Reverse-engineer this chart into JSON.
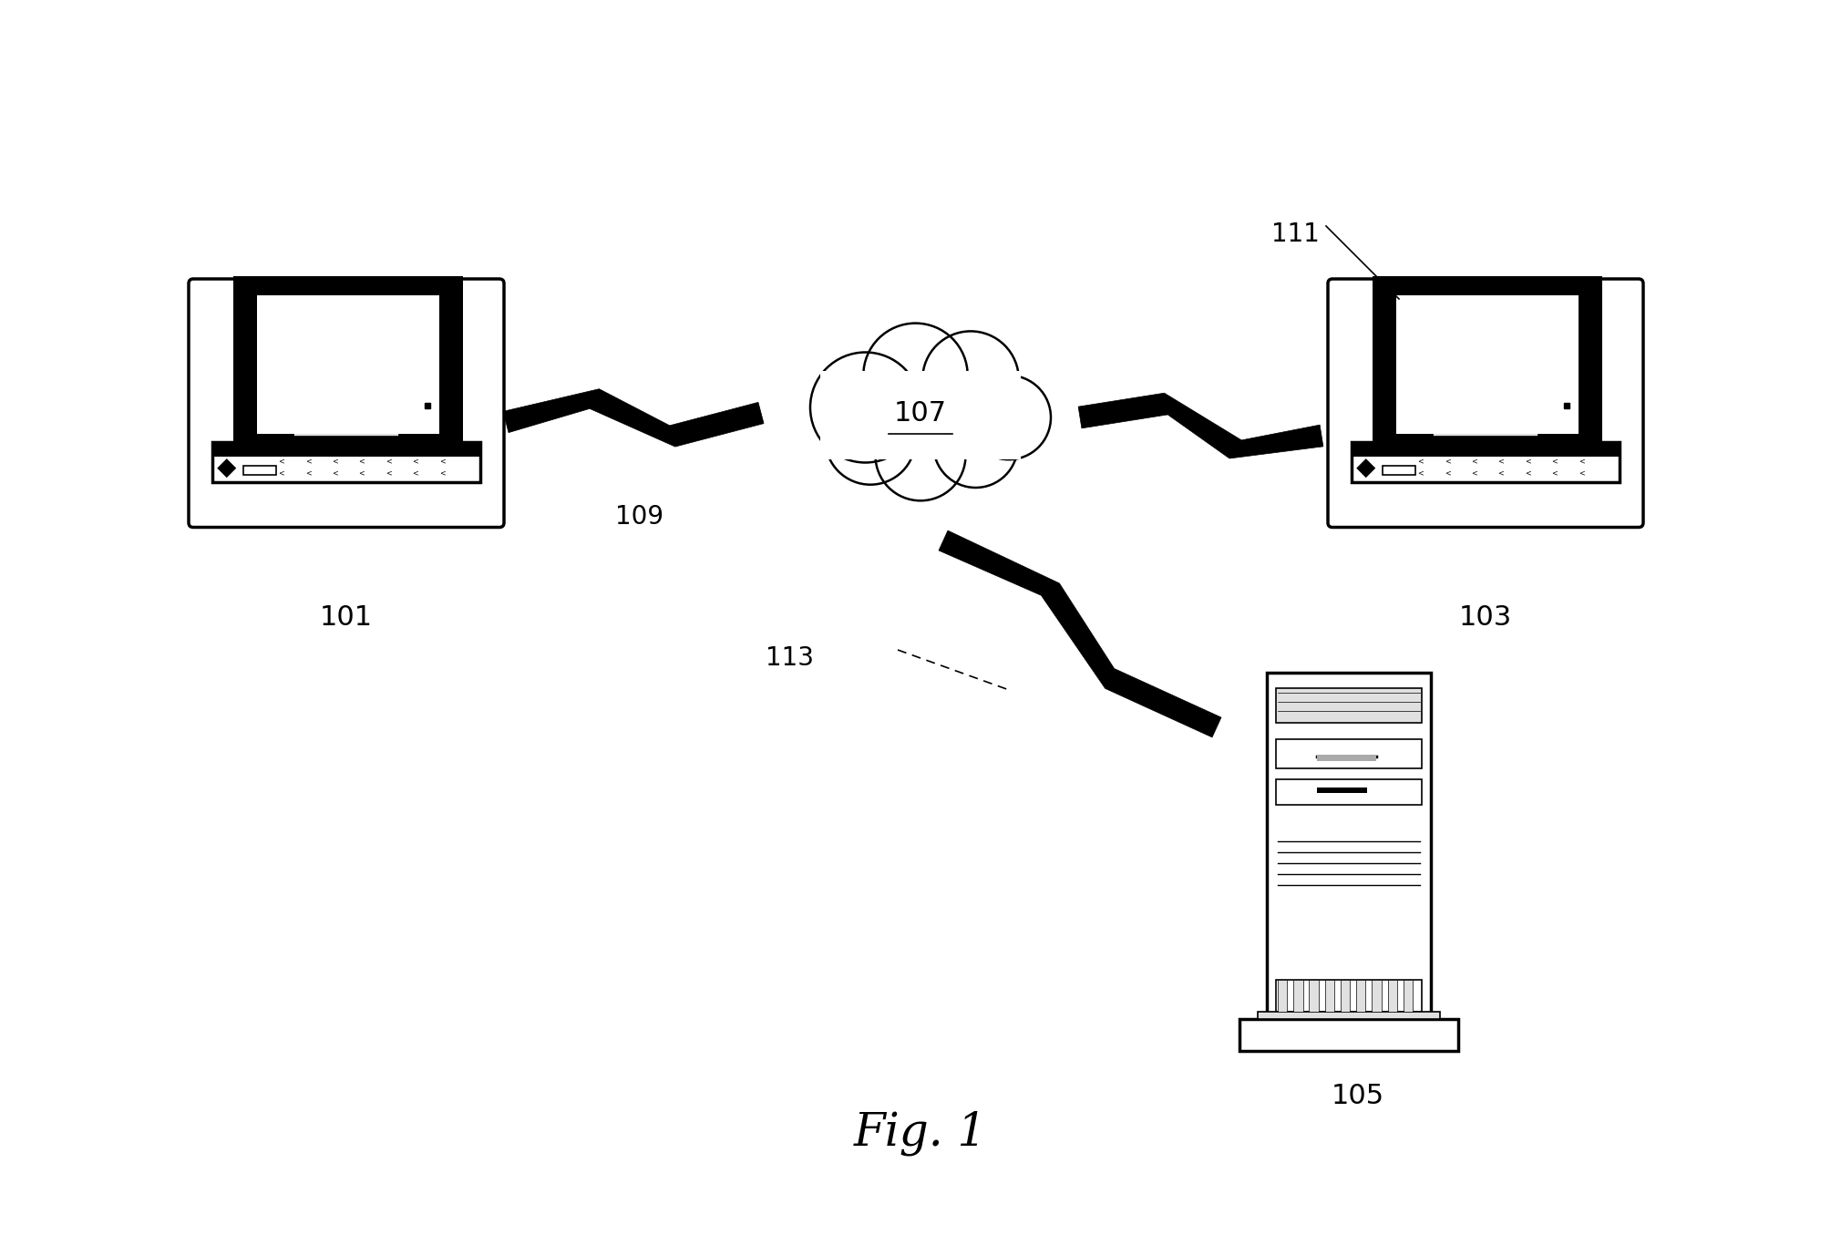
{
  "bg_color": "#ffffff",
  "label_101": "101",
  "label_103": "103",
  "label_105": "105",
  "label_107": "107",
  "label_109": "109",
  "label_111": "111",
  "label_113": "113",
  "fig_label": "Fig. 1"
}
